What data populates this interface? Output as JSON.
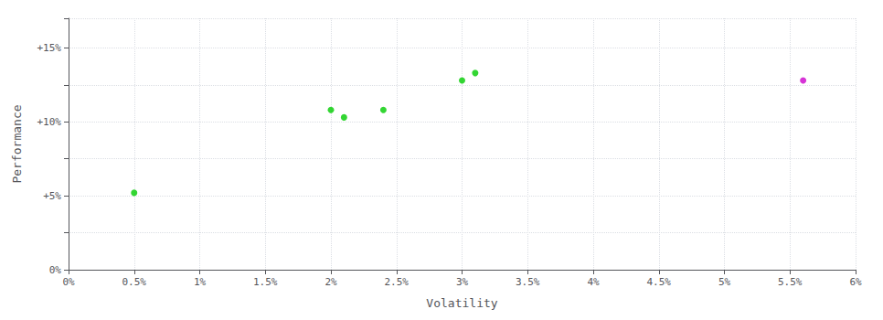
{
  "chart_data": {
    "type": "scatter",
    "xlabel": "Volatility",
    "ylabel": "Performance",
    "marker": "circle",
    "series": [
      {
        "color": "#00cc00",
        "x": [
          0.005,
          0.02,
          0.021,
          0.024,
          0.03,
          0.031
        ],
        "values": [
          0.052,
          0.108,
          0.103,
          0.108,
          0.128,
          0.133
        ]
      },
      {
        "color": "#cc00cc",
        "x": [
          0.056
        ],
        "values": [
          0.128
        ]
      }
    ],
    "xlim": [
      0.0,
      0.06
    ],
    "ylim": [
      0.0,
      0.17
    ],
    "xticks": [
      {
        "value": 0.0,
        "label": "0%"
      },
      {
        "value": 0.005,
        "label": "0.5%"
      },
      {
        "value": 0.01,
        "label": "1%"
      },
      {
        "value": 0.015,
        "label": "1.5%"
      },
      {
        "value": 0.02,
        "label": "2%"
      },
      {
        "value": 0.025,
        "label": "2.5%"
      },
      {
        "value": 0.03,
        "label": "3%"
      },
      {
        "value": 0.035,
        "label": "3.5%"
      },
      {
        "value": 0.04,
        "label": "4%"
      },
      {
        "value": 0.045,
        "label": "4.5%"
      },
      {
        "value": 0.05,
        "label": "5%"
      },
      {
        "value": 0.055,
        "label": "5.5%"
      },
      {
        "value": 0.06,
        "label": "6%"
      }
    ],
    "yticks": [
      {
        "value": 0.0,
        "label": "0%"
      },
      {
        "value": 0.025,
        "label": null
      },
      {
        "value": 0.05,
        "label": "+5%"
      },
      {
        "value": 0.075,
        "label": null
      },
      {
        "value": 0.1,
        "label": "+10%"
      },
      {
        "value": 0.125,
        "label": null
      },
      {
        "value": 0.15,
        "label": "+15%"
      }
    ],
    "grid": true
  }
}
